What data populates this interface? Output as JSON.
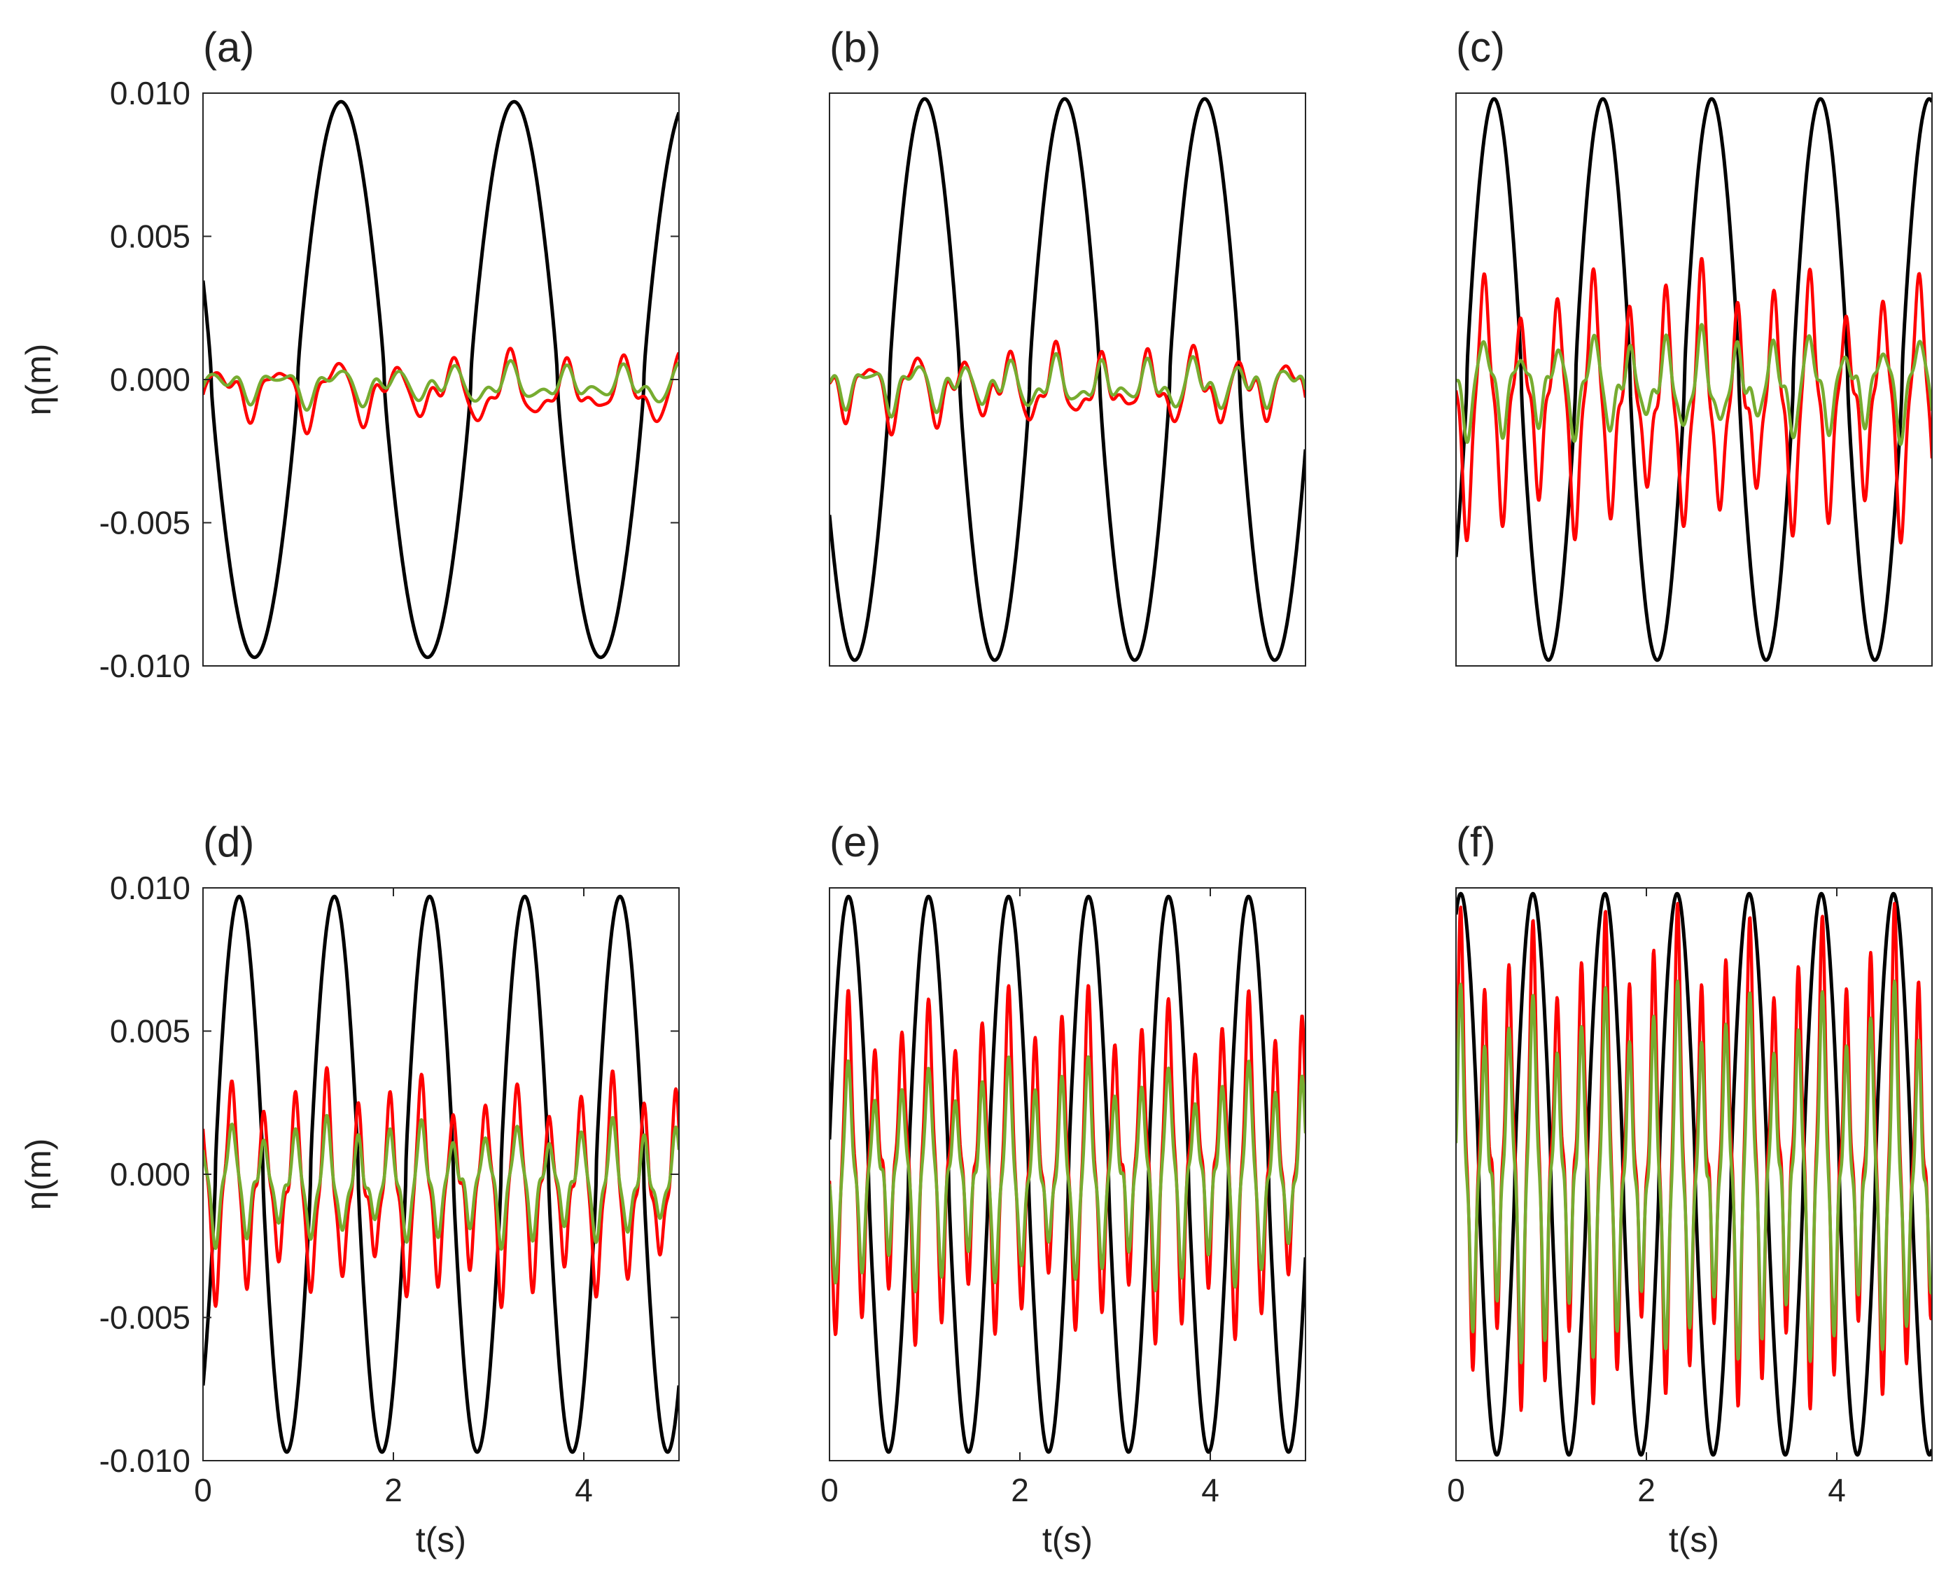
{
  "figure": {
    "background": "#ffffff",
    "colors": {
      "black": "#000000",
      "red": "#ff0000",
      "green": "#77ac30",
      "axis": "#262626"
    }
  },
  "chart_data": [
    {
      "type": "line",
      "label": "(a)",
      "title": "",
      "xlabel": "",
      "ylabel": "η(m)",
      "xlim": [
        0,
        5
      ],
      "ylim": [
        -0.01,
        0.01
      ],
      "xticks": [],
      "xtick_labels": [],
      "yticks": [
        0.01,
        0.005,
        0,
        -0.005,
        -0.01
      ],
      "ytick_labels": [
        "0.010",
        "0.005",
        "0.000",
        "-0.005",
        "-0.010"
      ],
      "grid": false,
      "legend": "none",
      "series": [
        {
          "color": "#000000",
          "amp": 0.0097,
          "freq": 0.55,
          "t_peak": 1.45,
          "offset": 0
        },
        {
          "color": "#ff0000",
          "amp": 0.0012,
          "freq": 1.65,
          "t_peak": 1.4,
          "offset": -0.0004,
          "burst": 0.0014
        },
        {
          "color": "#77ac30",
          "amp": 0.0006,
          "freq": 1.65,
          "t_peak": 1.4,
          "offset": -0.0002,
          "burst": 0.0012
        }
      ]
    },
    {
      "type": "line",
      "label": "(b)",
      "title": "",
      "xlabel": "",
      "ylabel": "",
      "xlim": [
        0,
        5
      ],
      "ylim": [
        -0.01,
        0.01
      ],
      "xticks": [],
      "xtick_labels": [],
      "yticks": [],
      "ytick_labels": [],
      "grid": false,
      "legend": "none",
      "series": [
        {
          "color": "#000000",
          "amp": 0.0098,
          "freq": 0.68,
          "t_peak": 1.0,
          "offset": 0
        },
        {
          "color": "#ff0000",
          "amp": 0.0013,
          "freq": 2.04,
          "t_peak": 0.9,
          "offset": -0.0003,
          "burst": 0.0016
        },
        {
          "color": "#77ac30",
          "amp": 0.0008,
          "freq": 2.04,
          "t_peak": 0.9,
          "offset": -0.0002,
          "burst": 0.0014
        }
      ]
    },
    {
      "type": "line",
      "label": "(c)",
      "title": "",
      "xlabel": "",
      "ylabel": "",
      "xlim": [
        0,
        5
      ],
      "ylim": [
        -0.01,
        0.01
      ],
      "xticks": [],
      "xtick_labels": [],
      "yticks": [],
      "ytick_labels": [],
      "grid": false,
      "legend": "none",
      "series": [
        {
          "color": "#000000",
          "amp": 0.0098,
          "freq": 0.875,
          "t_peak": 0.4,
          "offset": 0
        },
        {
          "color": "#ff0000",
          "amp": 0.0048,
          "freq": 2.63,
          "t_peak": 0.3,
          "offset": -0.0008,
          "burst": 0.0012
        },
        {
          "color": "#77ac30",
          "amp": 0.0018,
          "freq": 2.63,
          "t_peak": 0.3,
          "offset": -0.0002,
          "burst": 0.0014
        }
      ]
    },
    {
      "type": "line",
      "label": "(d)",
      "title": "",
      "xlabel": "t(s)",
      "ylabel": "η(m)",
      "xlim": [
        0,
        5
      ],
      "ylim": [
        -0.01,
        0.01
      ],
      "xticks": [
        0,
        2,
        4
      ],
      "xtick_labels": [
        "0",
        "2",
        "4"
      ],
      "yticks": [
        0.01,
        0.005,
        0,
        -0.005,
        -0.01
      ],
      "ytick_labels": [
        "0.010",
        "0.005",
        "0.000",
        "-0.005",
        "-0.010"
      ],
      "grid": false,
      "legend": "none",
      "series": [
        {
          "color": "#000000",
          "amp": 0.0097,
          "freq": 1.0,
          "t_peak": 0.38,
          "offset": 0
        },
        {
          "color": "#ff0000",
          "amp": 0.004,
          "freq": 3.0,
          "t_peak": 0.3,
          "offset": -0.0005,
          "burst": 0.0012
        },
        {
          "color": "#77ac30",
          "amp": 0.0022,
          "freq": 3.0,
          "t_peak": 0.3,
          "offset": -0.0003,
          "burst": 0.0008
        }
      ]
    },
    {
      "type": "line",
      "label": "(e)",
      "title": "",
      "xlabel": "t(s)",
      "ylabel": "",
      "xlim": [
        0,
        5
      ],
      "ylim": [
        -0.01,
        0.01
      ],
      "xticks": [
        0,
        2,
        4
      ],
      "xtick_labels": [
        "0",
        "2",
        "4"
      ],
      "yticks": [],
      "ytick_labels": [],
      "grid": false,
      "legend": "none",
      "series": [
        {
          "color": "#000000",
          "amp": 0.0097,
          "freq": 1.19,
          "t_peak": 0.2,
          "offset": 0
        },
        {
          "color": "#ff0000",
          "amp": 0.0062,
          "freq": 3.57,
          "t_peak": 0.2,
          "offset": 0.0003,
          "burst": 0.0012
        },
        {
          "color": "#77ac30",
          "amp": 0.004,
          "freq": 3.57,
          "t_peak": 0.2,
          "offset": 0.0,
          "burst": 0.001
        }
      ]
    },
    {
      "type": "line",
      "label": "(f)",
      "title": "",
      "xlabel": "t(s)",
      "ylabel": "",
      "xlim": [
        0,
        5
      ],
      "ylim": [
        -0.01,
        0.01
      ],
      "xticks": [
        0,
        2,
        4
      ],
      "xtick_labels": [
        "0",
        "2",
        "4"
      ],
      "yticks": [],
      "ytick_labels": [],
      "grid": false,
      "legend": "none",
      "series": [
        {
          "color": "#000000",
          "amp": 0.0098,
          "freq": 1.32,
          "t_peak": 0.05,
          "offset": 0
        },
        {
          "color": "#ff0000",
          "amp": 0.0088,
          "freq": 3.95,
          "t_peak": 0.05,
          "offset": 0.0005,
          "burst": 0.0012
        },
        {
          "color": "#77ac30",
          "amp": 0.0066,
          "freq": 3.95,
          "t_peak": 0.05,
          "offset": 0.0,
          "burst": 0.001
        }
      ]
    }
  ]
}
